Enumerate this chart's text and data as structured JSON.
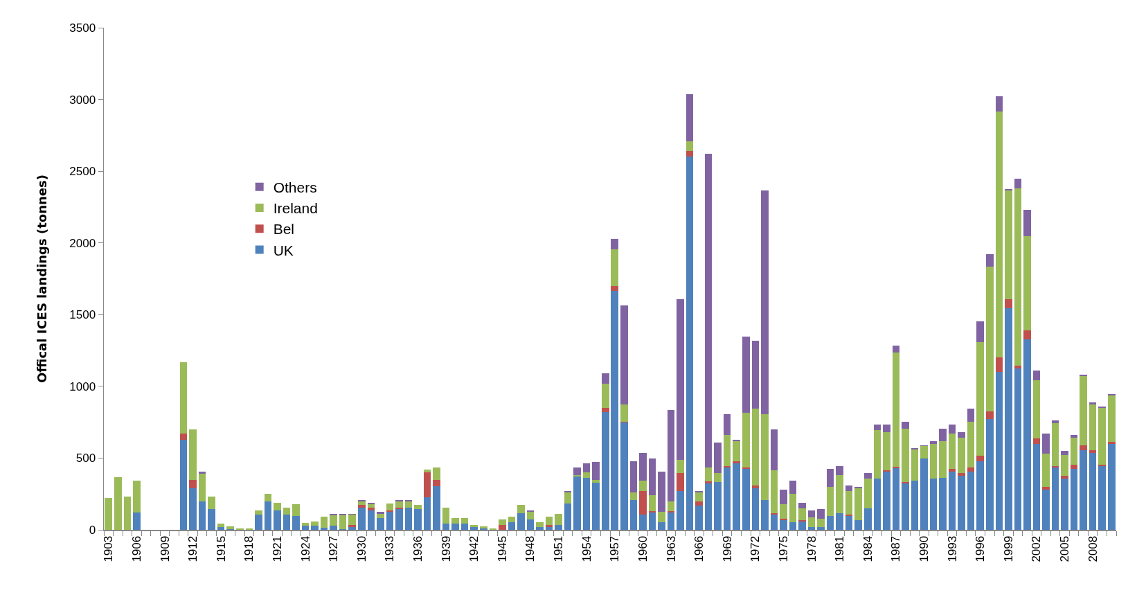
{
  "chart_data": {
    "type": "bar",
    "stacked": true,
    "ylabel": "Offical ICES landings (tonnes)",
    "ylim": [
      0,
      3500
    ],
    "yticks": [
      0,
      500,
      1000,
      1500,
      2000,
      2500,
      3000,
      3500
    ],
    "grid": false,
    "legend": "left",
    "categories": [
      "1903",
      null,
      null,
      "1906",
      null,
      null,
      "1909",
      null,
      null,
      "1912",
      null,
      null,
      "1915",
      null,
      null,
      "1918",
      null,
      null,
      "1921",
      null,
      null,
      "1924",
      null,
      null,
      "1927",
      null,
      null,
      "1930",
      null,
      null,
      "1933",
      null,
      null,
      "1936",
      null,
      null,
      "1939",
      null,
      null,
      "1942",
      null,
      null,
      "1945",
      null,
      null,
      "1948",
      null,
      null,
      "1951",
      null,
      null,
      "1954",
      null,
      null,
      "1957",
      null,
      null,
      "1960",
      null,
      null,
      "1963",
      null,
      null,
      "1966",
      null,
      null,
      "1969",
      null,
      null,
      "1972",
      null,
      null,
      "1975",
      null,
      null,
      "1978",
      null,
      null,
      "1981",
      null,
      null,
      "1984",
      null,
      null,
      "1987",
      null,
      null,
      "1990",
      null,
      null,
      "1993",
      null,
      null,
      "1996",
      null,
      null,
      "1999",
      null,
      null,
      "2002",
      null,
      null,
      "2005",
      null,
      null,
      "2008",
      null,
      null
    ],
    "series": [
      {
        "name": "UK",
        "color": "#4f81bd",
        "values": [
          0,
          0,
          0,
          120,
          0,
          0,
          0,
          0,
          630,
          290,
          200,
          145,
          20,
          5,
          0,
          0,
          105,
          200,
          135,
          105,
          95,
          30,
          30,
          15,
          30,
          5,
          20,
          155,
          135,
          84,
          125,
          146,
          155,
          146,
          227,
          306,
          42,
          42,
          42,
          20,
          12,
          0,
          0,
          54,
          116,
          74,
          20,
          20,
          32,
          185,
          370,
          360,
          328,
          823,
          1666,
          748,
          208,
          105,
          119,
          55,
          119,
          270,
          2604,
          167,
          323,
          332,
          435,
          465,
          426,
          291,
          206,
          108,
          66,
          55,
          57,
          21,
          21,
          96,
          114,
          96,
          66,
          149,
          355,
          407,
          428,
          323,
          341,
          497,
          355,
          364,
          405,
          375,
          405,
          478,
          773,
          1103,
          1545,
          1124,
          1330,
          597,
          279,
          435,
          355,
          426,
          556,
          535,
          446,
          597
        ]
      },
      {
        "name": "Bel",
        "color": "#c0504d",
        "values": [
          0,
          0,
          0,
          0,
          0,
          0,
          0,
          0,
          40,
          60,
          0,
          0,
          0,
          0,
          0,
          0,
          0,
          0,
          0,
          0,
          0,
          0,
          0,
          0,
          0,
          0,
          12,
          20,
          20,
          0,
          10,
          9,
          0,
          0,
          175,
          42,
          0,
          0,
          0,
          0,
          0,
          0,
          32,
          0,
          0,
          0,
          0,
          12,
          0,
          0,
          0,
          0,
          0,
          27,
          32,
          7,
          0,
          163,
          11,
          0,
          11,
          124,
          39,
          32,
          16,
          0,
          11,
          11,
          9,
          18,
          0,
          9,
          10,
          0,
          9,
          0,
          0,
          0,
          0,
          12,
          0,
          0,
          0,
          9,
          9,
          9,
          0,
          0,
          0,
          0,
          21,
          21,
          30,
          37,
          51,
          98,
          61,
          18,
          59,
          41,
          21,
          11,
          20,
          29,
          32,
          21,
          9,
          14
        ]
      },
      {
        "name": "Ireland",
        "color": "#9bbb59",
        "values": [
          220,
          365,
          230,
          225,
          0,
          0,
          0,
          0,
          500,
          350,
          190,
          85,
          25,
          20,
          10,
          10,
          30,
          50,
          55,
          50,
          85,
          20,
          30,
          75,
          70,
          95,
          72,
          22,
          22,
          29,
          50,
          42,
          42,
          29,
          19,
          85,
          113,
          42,
          42,
          12,
          10,
          12,
          42,
          39,
          59,
          51,
          34,
          61,
          81,
          74,
          12,
          42,
          20,
          167,
          256,
          121,
          55,
          75,
          110,
          71,
          69,
          93,
          64,
          64,
          96,
          62,
          213,
          142,
          382,
          538,
          602,
          297,
          102,
          194,
          83,
          66,
          55,
          204,
          268,
          164,
          225,
          206,
          338,
          266,
          799,
          371,
          220,
          87,
          245,
          256,
          247,
          247,
          320,
          792,
          1009,
          1714,
          760,
          1236,
          659,
          403,
          229,
          298,
          144,
          188,
          485,
          320,
          394,
          325
        ]
      },
      {
        "name": "Others",
        "color": "#8064a2",
        "values": [
          0,
          0,
          0,
          0,
          0,
          0,
          0,
          0,
          0,
          0,
          15,
          0,
          0,
          0,
          0,
          0,
          0,
          0,
          0,
          0,
          0,
          0,
          0,
          0,
          10,
          10,
          9,
          12,
          10,
          12,
          0,
          12,
          12,
          0,
          0,
          0,
          0,
          0,
          0,
          0,
          0,
          0,
          0,
          0,
          0,
          10,
          0,
          0,
          0,
          9,
          51,
          61,
          127,
          72,
          73,
          689,
          213,
          195,
          257,
          279,
          636,
          1119,
          330,
          9,
          2187,
          215,
          146,
          11,
          529,
          469,
          1558,
          286,
          103,
          92,
          39,
          48,
          70,
          123,
          62,
          37,
          9,
          39,
          39,
          50,
          50,
          50,
          9,
          6,
          20,
          83,
          59,
          39,
          92,
          146,
          89,
          108,
          7,
          71,
          183,
          71,
          141,
          20,
          30,
          18,
          9,
          10,
          9,
          11
        ]
      }
    ]
  }
}
